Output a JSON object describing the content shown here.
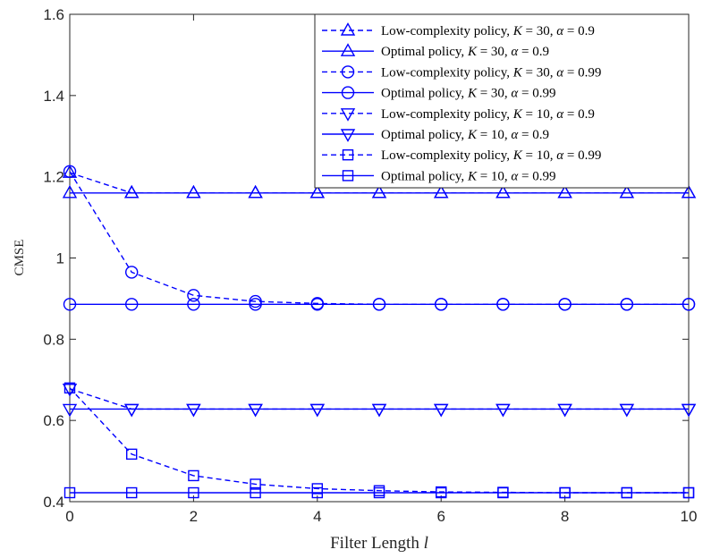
{
  "chart_data": {
    "type": "line",
    "title": "",
    "xlabel": "Filter Length l",
    "ylabel": "CMSE",
    "xlim": [
      0,
      10
    ],
    "ylim": [
      0.4,
      1.6
    ],
    "xticks": [
      0,
      2,
      4,
      6,
      8,
      10
    ],
    "yticks": [
      0.4,
      0.6,
      0.8,
      1,
      1.2,
      1.4,
      1.6
    ],
    "xtick_labels": [
      "0",
      "2",
      "4",
      "6",
      "8",
      "10"
    ],
    "ytick_labels": [
      "0.4",
      "0.6",
      "0.8",
      "1",
      "1.2",
      "1.4",
      "1.6"
    ],
    "grid": false,
    "legend_position": "top-right",
    "line_color": "#0000ff",
    "series": [
      {
        "name": "Low-complexity policy, K = 30, α = 0.9",
        "line": "dashed",
        "marker": "triangle-up",
        "x": [
          0,
          1,
          2,
          3,
          4,
          5,
          6,
          7,
          8,
          9,
          10
        ],
        "y": [
          1.21,
          1.16,
          1.16,
          1.16,
          1.16,
          1.16,
          1.16,
          1.16,
          1.16,
          1.16,
          1.16
        ]
      },
      {
        "name": "Optimal policy, K = 30, α = 0.9",
        "line": "solid",
        "marker": "triangle-up",
        "x": [
          0,
          1,
          2,
          3,
          4,
          5,
          6,
          7,
          8,
          9,
          10
        ],
        "y": [
          1.16,
          1.16,
          1.16,
          1.16,
          1.16,
          1.16,
          1.16,
          1.16,
          1.16,
          1.16,
          1.16
        ]
      },
      {
        "name": "Low-complexity policy, K = 30, α = 0.99",
        "line": "dashed",
        "marker": "circle",
        "x": [
          0,
          1,
          2,
          3,
          4,
          5,
          6,
          7,
          8,
          9,
          10
        ],
        "y": [
          1.213,
          0.965,
          0.908,
          0.893,
          0.888,
          0.886,
          0.886,
          0.886,
          0.886,
          0.886,
          0.886
        ]
      },
      {
        "name": "Optimal policy, K = 30, α = 0.99",
        "line": "solid",
        "marker": "circle",
        "x": [
          0,
          1,
          2,
          3,
          4,
          5,
          6,
          7,
          8,
          9,
          10
        ],
        "y": [
          0.886,
          0.886,
          0.886,
          0.886,
          0.886,
          0.886,
          0.886,
          0.886,
          0.886,
          0.886,
          0.886
        ]
      },
      {
        "name": "Low-complexity policy, K = 10, α = 0.9",
        "line": "dashed",
        "marker": "triangle-down",
        "x": [
          0,
          1,
          2,
          3,
          4,
          5,
          6,
          7,
          8,
          9,
          10
        ],
        "y": [
          0.678,
          0.628,
          0.628,
          0.628,
          0.628,
          0.628,
          0.628,
          0.628,
          0.628,
          0.628,
          0.628
        ]
      },
      {
        "name": "Optimal policy, K = 10, α = 0.9",
        "line": "solid",
        "marker": "triangle-down",
        "x": [
          0,
          1,
          2,
          3,
          4,
          5,
          6,
          7,
          8,
          9,
          10
        ],
        "y": [
          0.628,
          0.628,
          0.628,
          0.628,
          0.628,
          0.628,
          0.628,
          0.628,
          0.628,
          0.628,
          0.628
        ]
      },
      {
        "name": "Low-complexity policy, K = 10, α = 0.99",
        "line": "dashed",
        "marker": "square",
        "x": [
          0,
          1,
          2,
          3,
          4,
          5,
          6,
          7,
          8,
          9,
          10
        ],
        "y": [
          0.68,
          0.517,
          0.464,
          0.443,
          0.432,
          0.427,
          0.424,
          0.423,
          0.422,
          0.422,
          0.422
        ]
      },
      {
        "name": "Optimal policy, K = 10, α = 0.99",
        "line": "solid",
        "marker": "square",
        "x": [
          0,
          1,
          2,
          3,
          4,
          5,
          6,
          7,
          8,
          9,
          10
        ],
        "y": [
          0.422,
          0.422,
          0.422,
          0.422,
          0.422,
          0.422,
          0.422,
          0.422,
          0.422,
          0.422,
          0.422
        ]
      }
    ]
  },
  "legend": [
    {
      "prefix": "Low-complexity policy, ",
      "k": "K",
      "k_val": " = 30, ",
      "a": "α",
      "a_val": " = 0.9"
    },
    {
      "prefix": "Optimal policy, ",
      "k": "K",
      "k_val": " = 30, ",
      "a": "α",
      "a_val": " = 0.9"
    },
    {
      "prefix": "Low-complexity policy, ",
      "k": "K",
      "k_val": " = 30, ",
      "a": "α",
      "a_val": " = 0.99"
    },
    {
      "prefix": "Optimal policy, ",
      "k": "K",
      "k_val": " = 30, ",
      "a": "α",
      "a_val": " = 0.99"
    },
    {
      "prefix": "Low-complexity policy, ",
      "k": "K",
      "k_val": " = 10, ",
      "a": "α",
      "a_val": " = 0.9"
    },
    {
      "prefix": "Optimal policy, ",
      "k": "K",
      "k_val": " = 10, ",
      "a": "α",
      "a_val": " = 0.9"
    },
    {
      "prefix": "Low-complexity policy, ",
      "k": "K",
      "k_val": " = 10, ",
      "a": "α",
      "a_val": " = 0.99"
    },
    {
      "prefix": "Optimal policy, ",
      "k": "K",
      "k_val": " = 10, ",
      "a": "α",
      "a_val": " = 0.99"
    }
  ],
  "axis": {
    "xlabel_text": "Filter Length ",
    "xlabel_var": "l",
    "ylabel_text": "CMSE"
  }
}
